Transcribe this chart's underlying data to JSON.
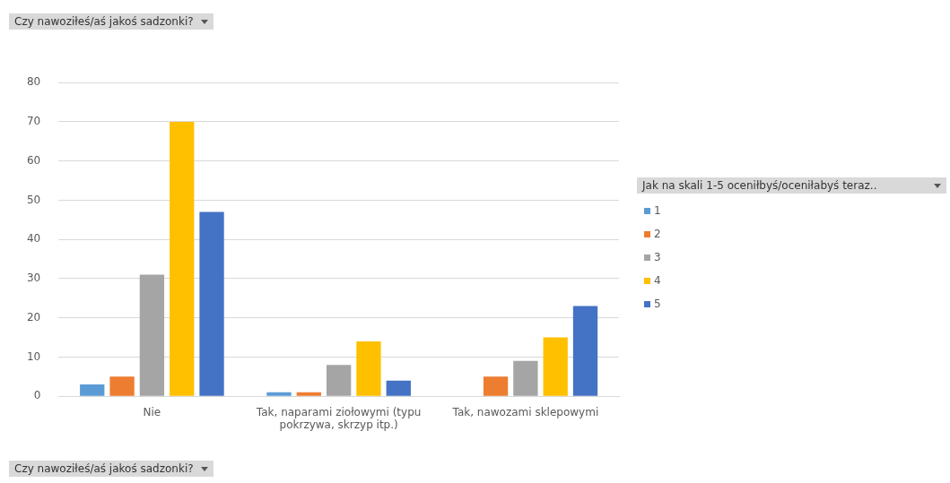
{
  "chart_data": {
    "type": "bar",
    "title": "Czy nawoziłeś/aś jakoś sadzonki?",
    "xlabel": "Czy nawoziłeś/aś jakoś sadzonki?",
    "legend_title": "Jak na skali 1-5 oceniłbyś/oceniłabyś teraz..",
    "categories": [
      "Nie",
      "Tak, naparami ziołowymi (typu pokrzywa, skrzyp itp.)",
      "Tak, nawozami sklepowymi"
    ],
    "series": [
      {
        "name": "1",
        "color": "#5b9bd5",
        "values": [
          3,
          1,
          null
        ]
      },
      {
        "name": "2",
        "color": "#ed7d31",
        "values": [
          5,
          1,
          5
        ]
      },
      {
        "name": "3",
        "color": "#a5a5a5",
        "values": [
          31,
          8,
          9
        ]
      },
      {
        "name": "4",
        "color": "#ffc000",
        "values": [
          70,
          14,
          15
        ]
      },
      {
        "name": "5",
        "color": "#4472c4",
        "values": [
          47,
          4,
          23
        ]
      }
    ],
    "ylim": [
      0,
      80
    ],
    "yticks": [
      0,
      10,
      20,
      30,
      40,
      50,
      60,
      70,
      80
    ],
    "grid": "y",
    "legend": "right"
  }
}
